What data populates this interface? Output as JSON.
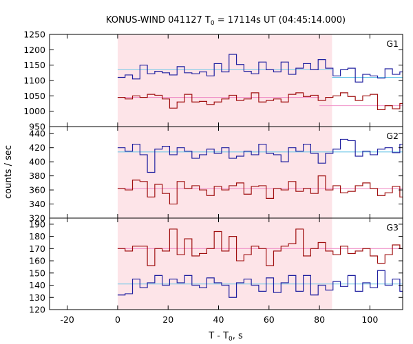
{
  "title": {
    "main": "KONUS-WIND 041127 T",
    "sub": "0",
    "rest": " = 17114s UT (04:45:14.000)"
  },
  "xlabel": {
    "main": "T - T",
    "sub": "0",
    "rest": ", s"
  },
  "ylabel": "counts / sec",
  "colors": {
    "blue": "#2020a0",
    "red": "#a01010",
    "cyan": "#70c8e8",
    "pink": "#f090c8",
    "shade": "#fde4e8"
  },
  "chart_data": {
    "type": "line",
    "x": {
      "lim": [
        -27,
        113
      ],
      "ticks": [
        -20,
        0,
        20,
        40,
        60,
        80,
        100
      ],
      "label": "T - T0, s"
    },
    "shaded_interval": [
      0,
      85
    ],
    "bin_width": 2.944,
    "bin_start": 0,
    "panels": [
      {
        "name": "G1",
        "ylim": [
          950,
          1250
        ],
        "yticks": [
          950,
          1000,
          1050,
          1100,
          1150,
          1200,
          1250
        ],
        "series": [
          {
            "color": "blue",
            "values": [
              1110,
              1118,
              1105,
              1150,
              1122,
              1130,
              1125,
              1118,
              1145,
              1125,
              1122,
              1128,
              1115,
              1155,
              1128,
              1185,
              1152,
              1130,
              1122,
              1160,
              1135,
              1128,
              1160,
              1120,
              1140,
              1155,
              1135,
              1168,
              1140,
              1115,
              1135,
              1140,
              1095,
              1120,
              1115,
              1108,
              1138,
              1120,
              1128,
              1098,
              1120,
              1112,
              1110,
              1118,
              1125
            ]
          },
          {
            "color": "red",
            "values": [
              1045,
              1040,
              1050,
              1045,
              1055,
              1052,
              1040,
              1010,
              1030,
              1055,
              1030,
              1032,
              1022,
              1030,
              1040,
              1052,
              1035,
              1040,
              1060,
              1030,
              1035,
              1040,
              1030,
              1055,
              1060,
              1048,
              1052,
              1035,
              1045,
              1050,
              1060,
              1048,
              1035,
              1050,
              1055,
              1005,
              1018,
              1008,
              1025,
              1002,
              1015,
              1010,
              1035,
              1008,
              1020,
              1028,
              1010
            ]
          }
        ],
        "fits": [
          {
            "color": "cyan",
            "segments": [
              [
                0,
                85,
                1135
              ],
              [
                85,
                113,
                1110
              ]
            ]
          },
          {
            "color": "pink",
            "segments": [
              [
                0,
                80,
                1045
              ],
              [
                80,
                113,
                1018
              ]
            ]
          }
        ]
      },
      {
        "name": "G2",
        "ylim": [
          320,
          450
        ],
        "yticks": [
          320,
          340,
          360,
          380,
          400,
          420,
          440
        ],
        "series": [
          {
            "color": "blue",
            "values": [
              420,
              415,
              425,
              410,
              385,
              418,
              422,
              410,
              420,
              415,
              405,
              410,
              418,
              412,
              420,
              405,
              408,
              415,
              410,
              425,
              412,
              410,
              400,
              420,
              415,
              425,
              412,
              398,
              412,
              418,
              432,
              430,
              408,
              415,
              410,
              418,
              420,
              413,
              425,
              410,
              415,
              428,
              412,
              418,
              424
            ]
          },
          {
            "color": "red",
            "values": [
              362,
              360,
              374,
              372,
              350,
              368,
              355,
              340,
              372,
              362,
              366,
              360,
              352,
              365,
              360,
              366,
              370,
              354,
              365,
              366,
              348,
              362,
              360,
              372,
              358,
              362,
              355,
              380,
              360,
              366,
              356,
              358,
              366,
              370,
              362,
              352,
              356,
              365,
              350,
              358,
              363,
              360,
              366,
              362,
              370,
              368,
              358
            ]
          }
        ],
        "fits": [
          {
            "color": "cyan",
            "segments": [
              [
                0,
                113,
                414
              ]
            ]
          },
          {
            "color": "pink",
            "segments": [
              [
                0,
                113,
                362
              ]
            ]
          }
        ]
      },
      {
        "name": "G3",
        "ylim": [
          120,
          195
        ],
        "yticks": [
          120,
          130,
          140,
          150,
          160,
          170,
          180,
          190
        ],
        "series": [
          {
            "color": "blue",
            "values": [
              132,
              133,
              145,
              138,
              142,
              148,
              140,
              145,
              142,
              148,
              140,
              138,
              146,
              142,
              140,
              130,
              142,
              145,
              140,
              135,
              146,
              134,
              142,
              148,
              135,
              148,
              132,
              140,
              136,
              143,
              139,
              148,
              135,
              142,
              138,
              152,
              140,
              145,
              135,
              150,
              144,
              138,
              148,
              142,
              138
            ]
          },
          {
            "color": "red",
            "values": [
              170,
              168,
              172,
              172,
              156,
              170,
              168,
              186,
              165,
              178,
              164,
              166,
              170,
              184,
              168,
              180,
              160,
              165,
              172,
              170,
              156,
              168,
              172,
              174,
              186,
              164,
              170,
              175,
              168,
              165,
              172,
              166,
              168,
              170,
              164,
              158,
              165,
              173,
              170,
              160,
              175,
              168,
              170,
              164,
              158,
              172,
              180
            ]
          }
        ],
        "fits": [
          {
            "color": "cyan",
            "segments": [
              [
                0,
                113,
                141
              ]
            ]
          },
          {
            "color": "pink",
            "segments": [
              [
                0,
                113,
                170
              ]
            ]
          }
        ]
      }
    ]
  }
}
